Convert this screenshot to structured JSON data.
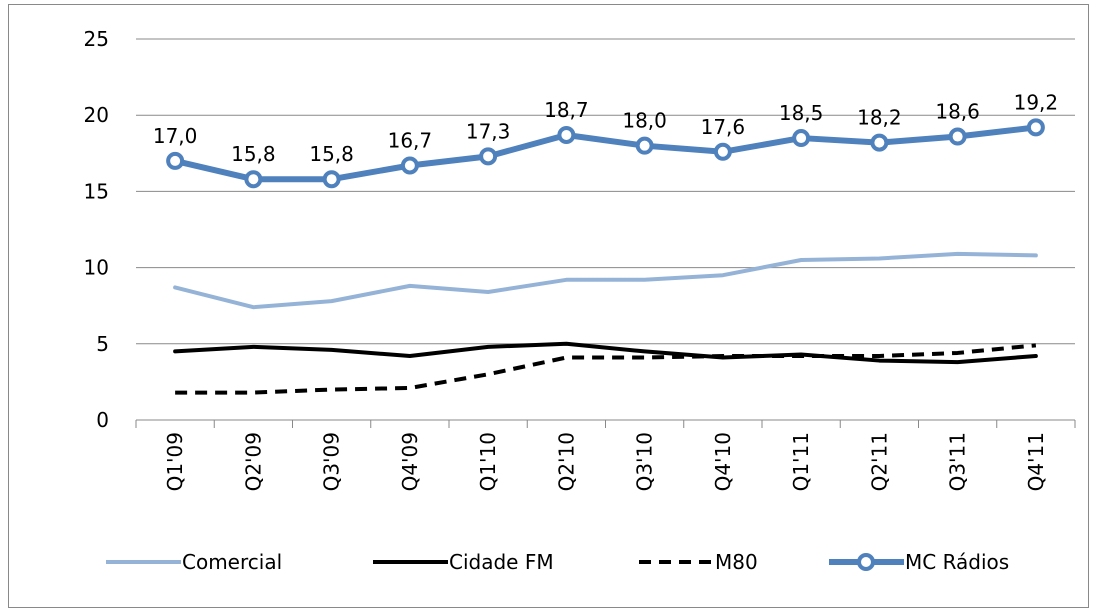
{
  "chart_data": {
    "type": "line",
    "title": "",
    "xlabel": "",
    "ylabel": "",
    "categories": [
      "Q1'09",
      "Q2'09",
      "Q3'09",
      "Q4'09",
      "Q1'10",
      "Q2'10",
      "Q3'10",
      "Q4'10",
      "Q1'11",
      "Q2'11",
      "Q3'11",
      "Q4'11"
    ],
    "ylim": [
      0,
      25
    ],
    "yticks": [
      "0",
      "5",
      "10",
      "15",
      "20",
      "25"
    ],
    "grid": true,
    "legend_position": "bottom",
    "series": [
      {
        "name": "Comercial",
        "color": "#95B3D7",
        "style": "solid",
        "values": [
          8.7,
          7.4,
          7.8,
          8.8,
          8.4,
          9.2,
          9.2,
          9.5,
          10.5,
          10.6,
          10.9,
          10.8
        ]
      },
      {
        "name": "Cidade FM",
        "color": "#000000",
        "style": "solid",
        "values": [
          4.5,
          4.8,
          4.6,
          4.2,
          4.8,
          5.0,
          4.5,
          4.1,
          4.3,
          3.9,
          3.8,
          4.2
        ]
      },
      {
        "name": "M80",
        "color": "#000000",
        "style": "dashed",
        "values": [
          1.8,
          1.8,
          2.0,
          2.1,
          3.0,
          4.1,
          4.1,
          4.2,
          4.2,
          4.2,
          4.4,
          4.9
        ]
      },
      {
        "name": "MC Rádios",
        "color": "#4F81BD",
        "style": "solid-markers",
        "values": [
          17.0,
          15.8,
          15.8,
          16.7,
          17.3,
          18.7,
          18.0,
          17.6,
          18.5,
          18.2,
          18.6,
          19.2
        ],
        "labels": [
          "17,0",
          "15,8",
          "15,8",
          "16,7",
          "17,3",
          "18,7",
          "18,0",
          "17,6",
          "18,5",
          "18,2",
          "18,6",
          "19,2"
        ]
      }
    ]
  }
}
